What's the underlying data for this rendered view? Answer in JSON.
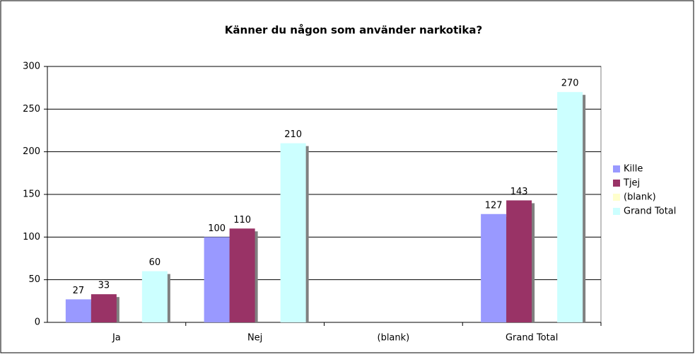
{
  "chart_data": {
    "type": "bar",
    "title": "Känner du någon som använder narkotika?",
    "categories": [
      "Ja",
      "Nej",
      "(blank)",
      "Grand Total"
    ],
    "series": [
      {
        "name": "Kille",
        "color": "#9999ff",
        "values": [
          27,
          100,
          null,
          127
        ]
      },
      {
        "name": "Tjej",
        "color": "#993366",
        "values": [
          33,
          110,
          null,
          143
        ]
      },
      {
        "name": "(blank)",
        "color": "#ffffcc",
        "values": [
          null,
          null,
          null,
          null
        ]
      },
      {
        "name": "Grand Total",
        "color": "#ccffff",
        "values": [
          60,
          210,
          null,
          270
        ]
      }
    ],
    "ylim": [
      0,
      300
    ],
    "yticks": [
      0,
      50,
      100,
      150,
      200,
      250,
      300
    ],
    "grid": true,
    "legend": "right"
  }
}
